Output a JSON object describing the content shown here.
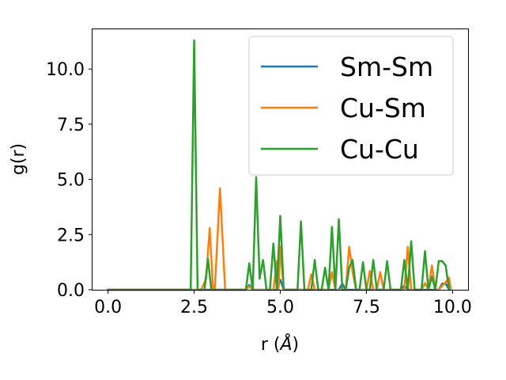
{
  "chart_data": {
    "type": "line",
    "xlabel_main": "r (",
    "xlabel_unit": "Å",
    "xlabel_end": ")",
    "ylabel": "g(r)",
    "xlim": [
      -0.45,
      10.45
    ],
    "ylim": [
      0,
      11.8
    ],
    "xticks": [
      0.0,
      2.5,
      5.0,
      7.5,
      10.0
    ],
    "xtick_labels": [
      "0.0",
      "2.5",
      "5.0",
      "7.5",
      "10.0"
    ],
    "yticks": [
      0.0,
      2.5,
      5.0,
      7.5,
      10.0
    ],
    "ytick_labels": [
      "0.0",
      "2.5",
      "5.0",
      "7.5",
      "10.0"
    ],
    "legend_position": "upper-right",
    "series": [
      {
        "name": "Sm-Sm",
        "color": "#1f77b4",
        "points": [
          [
            0.0,
            0
          ],
          [
            2.4,
            0
          ],
          [
            4.0,
            0
          ],
          [
            4.1,
            0.22
          ],
          [
            4.2,
            0
          ],
          [
            4.9,
            0
          ],
          [
            5.0,
            0.45
          ],
          [
            5.1,
            0
          ],
          [
            6.7,
            0
          ],
          [
            6.8,
            0.28
          ],
          [
            6.9,
            0
          ],
          [
            8.5,
            0
          ],
          [
            8.6,
            0.2
          ],
          [
            8.7,
            0
          ],
          [
            9.6,
            0
          ],
          [
            9.7,
            0.28
          ],
          [
            9.8,
            0.28
          ],
          [
            9.9,
            0
          ]
        ]
      },
      {
        "name": "Cu-Sm",
        "color": "#ff7f0e",
        "points": [
          [
            0.0,
            0
          ],
          [
            2.7,
            0
          ],
          [
            2.85,
            0.5
          ],
          [
            2.95,
            2.8
          ],
          [
            3.05,
            0
          ],
          [
            3.1,
            0
          ],
          [
            3.25,
            4.6
          ],
          [
            3.4,
            0
          ],
          [
            4.0,
            0
          ],
          [
            4.1,
            0.15
          ],
          [
            4.2,
            0
          ],
          [
            4.8,
            0
          ],
          [
            4.9,
            1.3
          ],
          [
            4.95,
            0
          ],
          [
            5.0,
            1.95
          ],
          [
            5.1,
            0
          ],
          [
            5.8,
            0
          ],
          [
            5.9,
            0.7
          ],
          [
            6.0,
            0
          ],
          [
            6.4,
            0
          ],
          [
            6.5,
            0.8
          ],
          [
            6.6,
            0
          ],
          [
            6.9,
            0
          ],
          [
            7.0,
            1.95
          ],
          [
            7.1,
            0.8
          ],
          [
            7.2,
            0
          ],
          [
            7.5,
            0
          ],
          [
            7.6,
            0.85
          ],
          [
            7.7,
            0
          ],
          [
            7.8,
            0
          ],
          [
            7.9,
            0.8
          ],
          [
            8.0,
            0
          ],
          [
            8.6,
            0
          ],
          [
            8.7,
            1.95
          ],
          [
            8.8,
            0
          ],
          [
            9.1,
            0
          ],
          [
            9.2,
            0.3
          ],
          [
            9.3,
            0
          ],
          [
            9.4,
            1.1
          ],
          [
            9.5,
            0
          ],
          [
            9.6,
            0
          ],
          [
            9.8,
            0.35
          ],
          [
            9.9,
            0.55
          ],
          [
            9.95,
            0
          ]
        ]
      },
      {
        "name": "Cu-Cu",
        "color": "#2ca02c",
        "points": [
          [
            0.0,
            0
          ],
          [
            2.4,
            0
          ],
          [
            2.5,
            11.3
          ],
          [
            2.6,
            0
          ],
          [
            2.8,
            0
          ],
          [
            2.9,
            1.4
          ],
          [
            3.0,
            0
          ],
          [
            4.0,
            0
          ],
          [
            4.1,
            1.2
          ],
          [
            4.2,
            0
          ],
          [
            4.3,
            5.1
          ],
          [
            4.4,
            0.5
          ],
          [
            4.5,
            1.35
          ],
          [
            4.6,
            0
          ],
          [
            4.7,
            0
          ],
          [
            4.8,
            2.1
          ],
          [
            4.9,
            0
          ],
          [
            5.0,
            3.35
          ],
          [
            5.1,
            0
          ],
          [
            5.5,
            0
          ],
          [
            5.6,
            3.1
          ],
          [
            5.7,
            0
          ],
          [
            5.9,
            0
          ],
          [
            6.0,
            1.35
          ],
          [
            6.1,
            0
          ],
          [
            6.2,
            0
          ],
          [
            6.3,
            1.0
          ],
          [
            6.4,
            0
          ],
          [
            6.5,
            2.85
          ],
          [
            6.6,
            0
          ],
          [
            6.7,
            3.2
          ],
          [
            6.8,
            0
          ],
          [
            6.9,
            0
          ],
          [
            7.0,
            1.0
          ],
          [
            7.1,
            1.35
          ],
          [
            7.2,
            0
          ],
          [
            7.3,
            0
          ],
          [
            7.4,
            1.25
          ],
          [
            7.5,
            0
          ],
          [
            7.6,
            0
          ],
          [
            7.7,
            1.35
          ],
          [
            7.8,
            0
          ],
          [
            8.0,
            0
          ],
          [
            8.1,
            1.3
          ],
          [
            8.2,
            0
          ],
          [
            8.5,
            0
          ],
          [
            8.6,
            1.35
          ],
          [
            8.7,
            0
          ],
          [
            8.8,
            2.2
          ],
          [
            8.9,
            0
          ],
          [
            9.1,
            0
          ],
          [
            9.2,
            1.75
          ],
          [
            9.3,
            0
          ],
          [
            9.4,
            0.6
          ],
          [
            9.5,
            0
          ],
          [
            9.6,
            1.3
          ],
          [
            9.7,
            1.3
          ],
          [
            9.8,
            1.1
          ],
          [
            9.9,
            0
          ]
        ]
      }
    ]
  }
}
